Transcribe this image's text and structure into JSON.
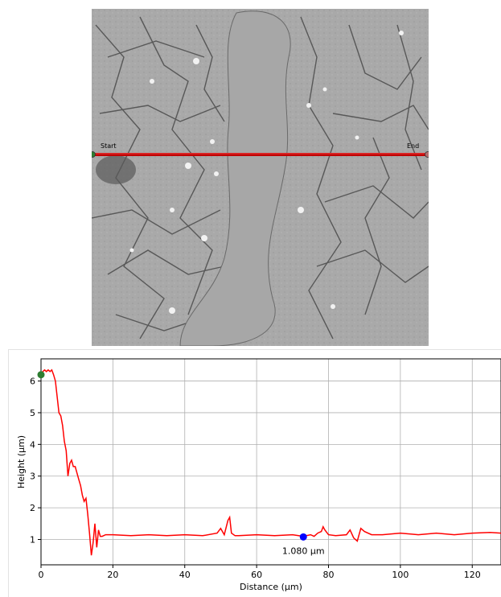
{
  "scan_line": {
    "start_label": "Start",
    "end_label": "End",
    "line_color": "#c00000"
  },
  "chart_data": {
    "type": "line",
    "title": "",
    "xlabel": "Distance (µm)",
    "ylabel": "Height (µm)",
    "xlim": [
      0,
      128
    ],
    "ylim": [
      0.2,
      6.7
    ],
    "xticks": [
      0,
      20,
      40,
      60,
      80,
      100,
      120
    ],
    "yticks": [
      1,
      2,
      3,
      4,
      5,
      6
    ],
    "grid": true,
    "series": [
      {
        "color": "#ff0000",
        "x": [
          0,
          0.5,
          1,
          1.5,
          2,
          2.5,
          3,
          3.5,
          4,
          4.5,
          5,
          5.5,
          6,
          6.5,
          7,
          7.5,
          8,
          8.5,
          9,
          9.5,
          10,
          10.5,
          11,
          11.5,
          12,
          12.5,
          13,
          13.5,
          14,
          14.5,
          15,
          15.5,
          16,
          16.5,
          17,
          18,
          20,
          25,
          30,
          35,
          40,
          45,
          49,
          50,
          51,
          52,
          52.5,
          53,
          54,
          55,
          60,
          65,
          70,
          73,
          75,
          76,
          77,
          78,
          78.5,
          79,
          80,
          82,
          85,
          86,
          87,
          88,
          89,
          90,
          92,
          95,
          100,
          105,
          110,
          115,
          120,
          125,
          128
        ],
        "y": [
          6.2,
          6.3,
          6.35,
          6.3,
          6.35,
          6.3,
          6.35,
          6.2,
          6.0,
          5.5,
          5.0,
          4.9,
          4.6,
          4.1,
          3.8,
          3.0,
          3.4,
          3.5,
          3.3,
          3.3,
          3.1,
          2.9,
          2.7,
          2.4,
          2.2,
          2.3,
          1.8,
          1.2,
          0.5,
          0.9,
          1.5,
          0.75,
          1.3,
          1.1,
          1.1,
          1.15,
          1.15,
          1.12,
          1.15,
          1.12,
          1.15,
          1.12,
          1.2,
          1.35,
          1.15,
          1.6,
          1.7,
          1.2,
          1.12,
          1.12,
          1.15,
          1.12,
          1.15,
          1.1,
          1.15,
          1.1,
          1.2,
          1.25,
          1.4,
          1.3,
          1.15,
          1.12,
          1.15,
          1.3,
          1.05,
          0.95,
          1.35,
          1.25,
          1.15,
          1.15,
          1.2,
          1.15,
          1.2,
          1.15,
          1.2,
          1.22,
          1.2
        ]
      }
    ],
    "markers": [
      {
        "name": "start-marker",
        "x": 0,
        "y": 6.2,
        "color": "#2e7d32"
      },
      {
        "name": "cursor-marker",
        "x": 73,
        "y": 1.08,
        "color": "#0000ff",
        "label": "1.080 µm"
      }
    ]
  }
}
